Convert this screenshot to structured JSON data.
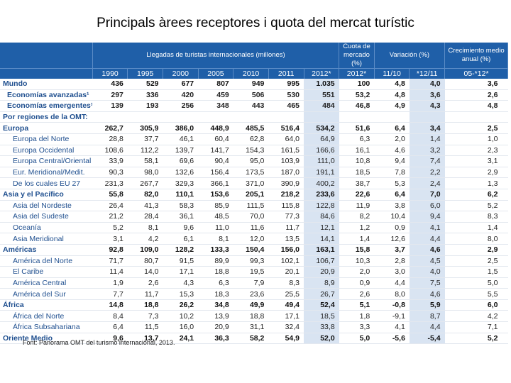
{
  "title": "Principals àrees receptores i quota del mercat turístic",
  "header": {
    "group_arrivals": "Llegadas de turistas internacionales (millones)",
    "group_share": "Cuota de mercado (%)",
    "group_variation": "Variación (%)",
    "group_growth": "Crecimiento medio anual (%)",
    "years": [
      "1990",
      "1995",
      "2000",
      "2005",
      "2010",
      "2011",
      "2012*",
      "2012*",
      "11/10",
      "*12/11",
      "05-*12*"
    ]
  },
  "rows": [
    {
      "label": "Mundo",
      "level": 0,
      "values": [
        "436",
        "529",
        "677",
        "807",
        "949",
        "995",
        "1.035",
        "100",
        "4,8",
        "4,0",
        "3,6"
      ]
    },
    {
      "label": "Economías avanzadas¹",
      "level": 1,
      "values": [
        "297",
        "336",
        "420",
        "459",
        "506",
        "530",
        "551",
        "53,2",
        "4,8",
        "3,6",
        "2,6"
      ]
    },
    {
      "label": "Economías emergentes¹",
      "level": 1,
      "values": [
        "139",
        "193",
        "256",
        "348",
        "443",
        "465",
        "484",
        "46,8",
        "4,9",
        "4,3",
        "4,8"
      ]
    },
    {
      "label": "Por regiones de la OMT:",
      "level": 9,
      "values": [
        "",
        "",
        "",
        "",
        "",
        "",
        "",
        "",
        "",
        "",
        ""
      ]
    },
    {
      "label": "Europa",
      "level": 0,
      "values": [
        "262,7",
        "305,9",
        "386,0",
        "448,9",
        "485,5",
        "516,4",
        "534,2",
        "51,6",
        "6,4",
        "3,4",
        "2,5"
      ]
    },
    {
      "label": "Europa del Norte",
      "level": 2,
      "values": [
        "28,8",
        "37,7",
        "46,1",
        "60,4",
        "62,8",
        "64,0",
        "64,9",
        "6,3",
        "2,0",
        "1,4",
        "1,0"
      ]
    },
    {
      "label": "Europa Occidental",
      "level": 2,
      "values": [
        "108,6",
        "112,2",
        "139,7",
        "141,7",
        "154,3",
        "161,5",
        "166,6",
        "16,1",
        "4,6",
        "3,2",
        "2,3"
      ]
    },
    {
      "label": "Europa Central/Oriental",
      "level": 2,
      "values": [
        "33,9",
        "58,1",
        "69,6",
        "90,4",
        "95,0",
        "103,9",
        "111,0",
        "10,8",
        "9,4",
        "7,4",
        "3,1"
      ]
    },
    {
      "label": "Eur. Meridional/Medit.",
      "level": 2,
      "values": [
        "90,3",
        "98,0",
        "132,6",
        "156,4",
        "173,5",
        "187,0",
        "191,1",
        "18,5",
        "7,8",
        "2,2",
        "2,9"
      ]
    },
    {
      "label": "De los cuales EU 27",
      "level": 2,
      "values": [
        "231,3",
        "267,7",
        "329,3",
        "366,1",
        "371,0",
        "390,9",
        "400,2",
        "38,7",
        "5,3",
        "2,4",
        "1,3"
      ]
    },
    {
      "label": "Asia y el Pacífico",
      "level": 0,
      "values": [
        "55,8",
        "82,0",
        "110,1",
        "153,6",
        "205,1",
        "218,2",
        "233,6",
        "22,6",
        "6,4",
        "7,0",
        "6,2"
      ]
    },
    {
      "label": "Asia del Nordeste",
      "level": 2,
      "values": [
        "26,4",
        "41,3",
        "58,3",
        "85,9",
        "111,5",
        "115,8",
        "122,8",
        "11,9",
        "3,8",
        "6,0",
        "5,2"
      ]
    },
    {
      "label": "Asia del Sudeste",
      "level": 2,
      "values": [
        "21,2",
        "28,4",
        "36,1",
        "48,5",
        "70,0",
        "77,3",
        "84,6",
        "8,2",
        "10,4",
        "9,4",
        "8,3"
      ]
    },
    {
      "label": "Oceanía",
      "level": 2,
      "values": [
        "5,2",
        "8,1",
        "9,6",
        "11,0",
        "11,6",
        "11,7",
        "12,1",
        "1,2",
        "0,9",
        "4,1",
        "1,4"
      ]
    },
    {
      "label": "Asia Meridional",
      "level": 2,
      "values": [
        "3,1",
        "4,2",
        "6,1",
        "8,1",
        "12,0",
        "13,5",
        "14,1",
        "1,4",
        "12,6",
        "4,4",
        "8,0"
      ]
    },
    {
      "label": "Américas",
      "level": 0,
      "values": [
        "92,8",
        "109,0",
        "128,2",
        "133,3",
        "150,4",
        "156,0",
        "163,1",
        "15,8",
        "3,7",
        "4,6",
        "2,9"
      ]
    },
    {
      "label": "América del Norte",
      "level": 2,
      "values": [
        "71,7",
        "80,7",
        "91,5",
        "89,9",
        "99,3",
        "102,1",
        "106,7",
        "10,3",
        "2,8",
        "4,5",
        "2,5"
      ]
    },
    {
      "label": "El Caribe",
      "level": 2,
      "values": [
        "11,4",
        "14,0",
        "17,1",
        "18,8",
        "19,5",
        "20,1",
        "20,9",
        "2,0",
        "3,0",
        "4,0",
        "1,5"
      ]
    },
    {
      "label": "América Central",
      "level": 2,
      "values": [
        "1,9",
        "2,6",
        "4,3",
        "6,3",
        "7,9",
        "8,3",
        "8,9",
        "0,9",
        "4,4",
        "7,5",
        "5,0"
      ]
    },
    {
      "label": "América del Sur",
      "level": 2,
      "values": [
        "7,7",
        "11,7",
        "15,3",
        "18,3",
        "23,6",
        "25,5",
        "26,7",
        "2,6",
        "8,0",
        "4,6",
        "5,5"
      ]
    },
    {
      "label": "África",
      "level": 0,
      "values": [
        "14,8",
        "18,8",
        "26,2",
        "34,8",
        "49,9",
        "49,4",
        "52,4",
        "5,1",
        "-0,8",
        "5,9",
        "6,0"
      ]
    },
    {
      "label": "África del Norte",
      "level": 2,
      "values": [
        "8,4",
        "7,3",
        "10,2",
        "13,9",
        "18,8",
        "17,1",
        "18,5",
        "1,8",
        "-9,1",
        "8,7",
        "4,2"
      ]
    },
    {
      "label": "África Subsahariana",
      "level": 2,
      "values": [
        "6,4",
        "11,5",
        "16,0",
        "20,9",
        "31,1",
        "32,4",
        "33,8",
        "3,3",
        "4,1",
        "4,4",
        "7,1"
      ]
    },
    {
      "label": "Oriente Medio",
      "level": 0,
      "values": [
        "9,6",
        "13,7",
        "24,1",
        "36,3",
        "58,2",
        "54,9",
        "52,0",
        "5,0",
        "-5,6",
        "-5,4",
        "5,2"
      ]
    }
  ],
  "source": "Font: Panorama OMT del turismo internacional, 2013."
}
